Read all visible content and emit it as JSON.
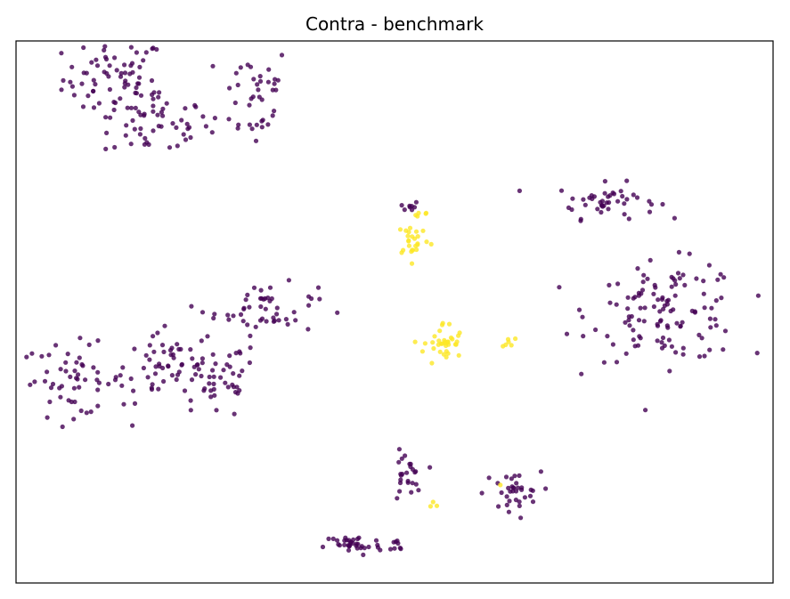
{
  "chart_data": {
    "type": "scatter",
    "title": "Contra - benchmark",
    "xlabel": "",
    "ylabel": "",
    "grid": false,
    "axis_ticks": false,
    "xlim": [
      0,
      100
    ],
    "ylim": [
      0,
      100
    ],
    "colors": {
      "class_0": "#440154",
      "class_1": "#fde725"
    },
    "clusters": [
      {
        "label": 0,
        "cx": 13.0,
        "cy": 93.0,
        "sx": 3.4,
        "sy": 3.8,
        "n": 65
      },
      {
        "label": 0,
        "cx": 18.5,
        "cy": 85.0,
        "sx": 3.5,
        "sy": 3.3,
        "n": 55
      },
      {
        "label": 0,
        "cx": 31.5,
        "cy": 90.0,
        "sx": 2.4,
        "sy": 5.0,
        "n": 40
      },
      {
        "label": 0,
        "cx": 52.0,
        "cy": 69.5,
        "sx": 0.6,
        "sy": 0.5,
        "n": 8
      },
      {
        "label": 0,
        "cx": 78.0,
        "cy": 70.5,
        "sx": 3.3,
        "sy": 1.6,
        "n": 45
      },
      {
        "label": 0,
        "cx": 33.0,
        "cy": 50.5,
        "sx": 3.4,
        "sy": 2.3,
        "n": 50
      },
      {
        "label": 0,
        "cx": 7.5,
        "cy": 37.5,
        "sx": 3.5,
        "sy": 3.3,
        "n": 55
      },
      {
        "label": 0,
        "cx": 19.0,
        "cy": 40.0,
        "sx": 2.4,
        "sy": 3.8,
        "n": 40
      },
      {
        "label": 0,
        "cx": 26.0,
        "cy": 37.5,
        "sx": 3.1,
        "sy": 3.8,
        "n": 55
      },
      {
        "label": 0,
        "cx": 86.0,
        "cy": 50.0,
        "sx": 5.0,
        "sy": 4.5,
        "n": 120
      },
      {
        "label": 0,
        "cx": 51.5,
        "cy": 19.5,
        "sx": 1.0,
        "sy": 2.3,
        "n": 25
      },
      {
        "label": 0,
        "cx": 65.5,
        "cy": 16.5,
        "sx": 1.9,
        "sy": 2.0,
        "n": 35
      },
      {
        "label": 0,
        "cx": 44.5,
        "cy": 7.0,
        "sx": 1.9,
        "sy": 1.0,
        "n": 35
      },
      {
        "label": 0,
        "cx": 50.5,
        "cy": 7.0,
        "sx": 0.6,
        "sy": 0.8,
        "n": 8
      },
      {
        "label": 1,
        "cx": 52.5,
        "cy": 63.5,
        "sx": 1.1,
        "sy": 1.6,
        "n": 25
      },
      {
        "label": 1,
        "cx": 56.5,
        "cy": 44.0,
        "sx": 1.3,
        "sy": 2.1,
        "n": 35
      },
      {
        "label": 1,
        "cx": 53.5,
        "cy": 68.0,
        "sx": 0.7,
        "sy": 0.3,
        "n": 5
      },
      {
        "label": 1,
        "cx": 65.0,
        "cy": 45.0,
        "sx": 0.4,
        "sy": 0.8,
        "n": 6
      },
      {
        "label": 1,
        "cx": 55.5,
        "cy": 14.5,
        "sx": 0.3,
        "sy": 0.3,
        "n": 3
      },
      {
        "label": 1,
        "cx": 64.0,
        "cy": 18.0,
        "sx": 0.2,
        "sy": 0.2,
        "n": 1
      }
    ]
  }
}
